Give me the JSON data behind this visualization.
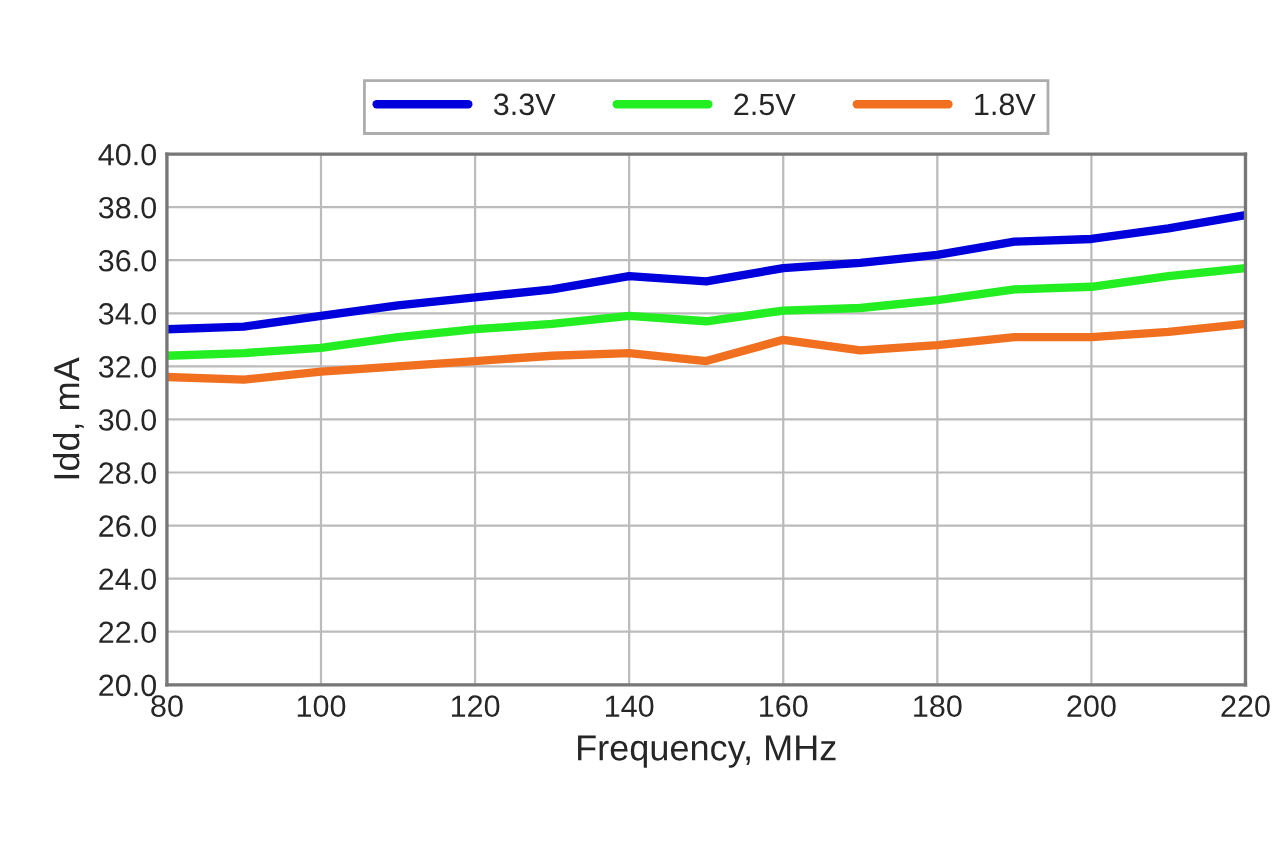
{
  "chart_data": {
    "type": "line",
    "xlabel": "Frequency, MHz",
    "ylabel": "Idd, mA",
    "x": [
      80,
      90,
      100,
      110,
      120,
      130,
      140,
      150,
      160,
      170,
      180,
      190,
      200,
      210,
      220
    ],
    "series": [
      {
        "name": "3.3V",
        "color": "#0000dd",
        "values": [
          33.4,
          33.5,
          33.9,
          34.3,
          34.6,
          34.9,
          35.4,
          35.2,
          35.7,
          35.9,
          36.2,
          36.7,
          36.8,
          37.2,
          37.7
        ]
      },
      {
        "name": "2.5V",
        "color": "#22ee22",
        "values": [
          32.4,
          32.5,
          32.7,
          33.1,
          33.4,
          33.6,
          33.9,
          33.7,
          34.1,
          34.2,
          34.5,
          34.9,
          35.0,
          35.4,
          35.7
        ]
      },
      {
        "name": "1.8V",
        "color": "#f07020",
        "values": [
          31.6,
          31.5,
          31.8,
          32.0,
          32.2,
          32.4,
          32.5,
          32.2,
          33.0,
          32.6,
          32.8,
          33.1,
          33.1,
          33.3,
          33.6
        ]
      }
    ],
    "xlim": [
      80,
      220
    ],
    "xticks": [
      80,
      100,
      120,
      140,
      160,
      180,
      200,
      220
    ],
    "ylim": [
      20,
      40
    ],
    "yticks": [
      {
        "value": 20,
        "label": "20.0"
      },
      {
        "value": 22,
        "label": "22.0"
      },
      {
        "value": 24,
        "label": "24.0"
      },
      {
        "value": 26,
        "label": "26.0"
      },
      {
        "value": 28,
        "label": "28.0"
      },
      {
        "value": 30,
        "label": "30.0"
      },
      {
        "value": 32,
        "label": "32.0"
      },
      {
        "value": 34,
        "label": "34.0"
      },
      {
        "value": 36,
        "label": "36.0"
      },
      {
        "value": 38,
        "label": "38.0"
      },
      {
        "value": 40,
        "label": "40.0"
      }
    ],
    "grid": true,
    "legend": "top",
    "line_style": "solid"
  }
}
